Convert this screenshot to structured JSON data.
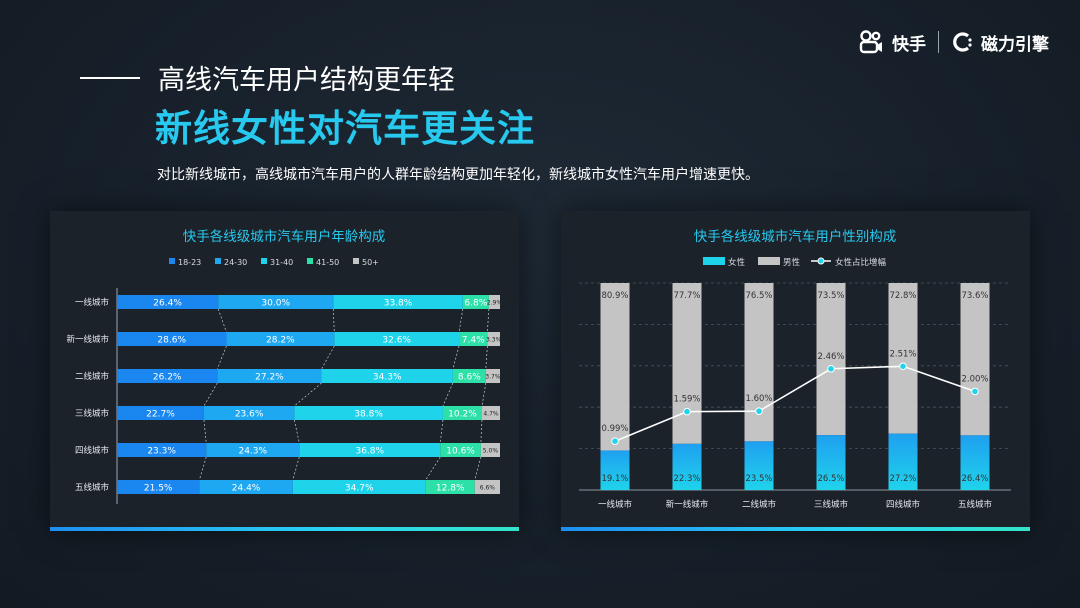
{
  "brand": {
    "kuaishou": "快手",
    "cili": "磁力引擎"
  },
  "headline": {
    "title_line1": "高线汽车用户结构更年轻",
    "title_line2": "新线女性对汽车更关注",
    "subtitle": "对比新线城市，高线城市汽车用户的人群年龄结构更加年轻化，新线城市女性汽车用户增速更快。"
  },
  "colors": {
    "age": [
      "#1a86f0",
      "#1fa8f2",
      "#1fd3eb",
      "#2ce0a8",
      "#c4c4c4"
    ],
    "female": "#1fd3eb",
    "male": "#c4c4c4",
    "line": "#ffffff",
    "title_accent": "#27c9ef"
  },
  "chart_data": [
    {
      "type": "bar",
      "orientation": "horizontal",
      "stacked": "percent",
      "title": "快手各线级城市汽车用户年龄构成",
      "legend_position": "top-center",
      "categories": [
        "一线城市",
        "新一线城市",
        "二线城市",
        "三线城市",
        "四线城市",
        "五线城市"
      ],
      "series": [
        {
          "name": "18-23",
          "values": [
            26.4,
            28.6,
            26.2,
            22.7,
            23.3,
            21.5
          ],
          "labels": [
            "26.4%",
            "28.6%",
            "26.2%",
            "22.7%",
            "23.3%",
            "21.5%"
          ]
        },
        {
          "name": "24-30",
          "values": [
            30.0,
            28.2,
            27.2,
            23.6,
            24.3,
            24.4
          ],
          "labels": [
            "30.0%",
            "28.2%",
            "27.2%",
            "23.6%",
            "24.3%",
            "24.4%"
          ]
        },
        {
          "name": "31-40",
          "values": [
            33.8,
            32.6,
            34.3,
            38.8,
            36.8,
            34.7
          ],
          "labels": [
            "33.8%",
            "32.6%",
            "34.3%",
            "38.8%",
            "36.8%",
            "34.7%"
          ]
        },
        {
          "name": "41-50",
          "values": [
            6.8,
            7.4,
            8.6,
            10.2,
            10.6,
            12.8
          ],
          "labels": [
            "6.8%",
            "7.4%",
            "8.6%",
            "10.2%",
            "10.6%",
            "12.8%"
          ]
        },
        {
          "name": "50+",
          "values": [
            2.9,
            3.3,
            3.7,
            4.7,
            5.0,
            6.6
          ],
          "labels": [
            "2.9%",
            "3.3%",
            "3.7%",
            "4.7%",
            "5.0%",
            "6.6%"
          ]
        }
      ]
    },
    {
      "type": "bar",
      "stacked": "percent",
      "title": "快手各线级城市汽车用户性别构成",
      "legend_position": "top-center",
      "grid": true,
      "categories": [
        "一线城市",
        "新一线城市",
        "二线城市",
        "三线城市",
        "四线城市",
        "五线城市"
      ],
      "series": [
        {
          "name": "女性",
          "values": [
            19.1,
            22.3,
            23.5,
            26.5,
            27.2,
            26.4
          ],
          "labels": [
            "19.1%",
            "22.3%",
            "23.5%",
            "26.5%",
            "27.2%",
            "26.4%"
          ]
        },
        {
          "name": "男性",
          "values": [
            80.9,
            77.7,
            76.5,
            73.5,
            72.8,
            73.6
          ],
          "labels": [
            "80.9%",
            "77.7%",
            "76.5%",
            "73.5%",
            "72.8%",
            "73.6%"
          ]
        }
      ],
      "line_series": {
        "name": "女性占比增幅",
        "type": "line",
        "values": [
          0.99,
          1.59,
          1.6,
          2.46,
          2.51,
          2.0
        ],
        "labels": [
          "0.99%",
          "1.59%",
          "1.60%",
          "2.46%",
          "2.51%",
          "2.00%"
        ]
      }
    }
  ]
}
